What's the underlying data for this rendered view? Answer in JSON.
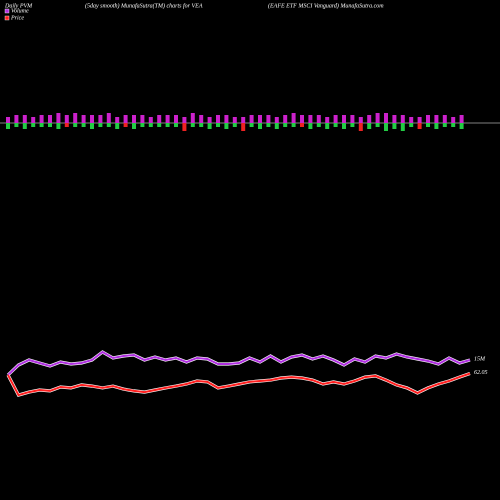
{
  "chart_data": {
    "type": "pvm",
    "title": "Daily PVM",
    "subtitle": "(5day smooth) MunafaSutra(TM) charts for VEA",
    "name": "(EAFE ETF MSCI Vanguard) MunafaSutra.com",
    "bars": {
      "ylim": [
        -10,
        10
      ],
      "up_color": "#cc22cc",
      "up": [
        3,
        4,
        4,
        3,
        4,
        4,
        5,
        4,
        5,
        4,
        4,
        4,
        5,
        3,
        4,
        4,
        4,
        3,
        4,
        4,
        4,
        3,
        5,
        4,
        3,
        4,
        4,
        3,
        3,
        4,
        4,
        4,
        3,
        4,
        5,
        4,
        4,
        4,
        3,
        4,
        4,
        4,
        3,
        4,
        5,
        5,
        4,
        4,
        3,
        3,
        4,
        4,
        4,
        3,
        4
      ],
      "down": [
        -3,
        -2,
        -3,
        -2,
        -2,
        -2,
        -3,
        -2,
        -2,
        -2,
        -3,
        -2,
        -2,
        -3,
        -2,
        -3,
        -2,
        -2,
        -2,
        -2,
        -2,
        -4,
        -2,
        -2,
        -3,
        -2,
        -3,
        -2,
        -4,
        -2,
        -3,
        -2,
        -3,
        -2,
        -2,
        -2,
        -3,
        -2,
        -3,
        -2,
        -3,
        -2,
        -4,
        -3,
        -2,
        -4,
        -3,
        -4,
        -2,
        -3,
        -2,
        -3,
        -2,
        -2,
        -3
      ],
      "down_colors": [
        "#22cc44",
        "#22cc44",
        "#22cc44",
        "#22cc44",
        "#22cc44",
        "#22cc44",
        "#22cc44",
        "#ee2222",
        "#22cc44",
        "#22cc44",
        "#22cc44",
        "#22cc44",
        "#22cc44",
        "#22cc44",
        "#ee2222",
        "#22cc44",
        "#22cc44",
        "#22cc44",
        "#22cc44",
        "#22cc44",
        "#22cc44",
        "#ee2222",
        "#22cc44",
        "#22cc44",
        "#22cc44",
        "#22cc44",
        "#22cc44",
        "#22cc44",
        "#ee2222",
        "#22cc44",
        "#22cc44",
        "#22cc44",
        "#22cc44",
        "#22cc44",
        "#22cc44",
        "#ee2222",
        "#22cc44",
        "#22cc44",
        "#22cc44",
        "#22cc44",
        "#22cc44",
        "#22cc44",
        "#ee2222",
        "#22cc44",
        "#22cc44",
        "#22cc44",
        "#22cc44",
        "#22cc44",
        "#22cc44",
        "#ee2222",
        "#22cc44",
        "#22cc44",
        "#22cc44",
        "#22cc44",
        "#22cc44"
      ]
    },
    "series": [
      {
        "name": "Volume",
        "color": "#b030e0",
        "ylim": [
          0,
          30
        ],
        "last_label": "15M",
        "values": [
          11.25,
          13.75,
          15,
          14.25,
          13.5,
          14.5,
          14,
          14.25,
          15,
          17,
          15.5,
          16,
          16.25,
          15,
          15.75,
          15,
          15.5,
          14.5,
          15.5,
          15.25,
          14,
          14,
          14.25,
          15.5,
          14.5,
          16,
          14.5,
          15.75,
          16.25,
          15.25,
          16,
          15,
          13.75,
          15.25,
          14.5,
          16,
          15.5,
          16.5,
          15.75,
          15.25,
          14.75,
          14,
          15.5,
          14.25,
          15
        ]
      },
      {
        "name": "Price",
        "color": "#ff2020",
        "ylim": [
          60.5,
          64.5
        ],
        "last_label": "62.05",
        "values": [
          62.0,
          61.33,
          61.43,
          61.5,
          61.47,
          61.6,
          61.57,
          61.67,
          61.63,
          61.57,
          61.63,
          61.53,
          61.47,
          61.43,
          61.5,
          61.57,
          61.63,
          61.7,
          61.8,
          61.77,
          61.57,
          61.63,
          61.7,
          61.77,
          61.8,
          61.83,
          61.9,
          61.93,
          61.9,
          61.83,
          61.7,
          61.77,
          61.7,
          61.8,
          61.93,
          61.97,
          61.83,
          61.67,
          61.57,
          61.4,
          61.57,
          61.7,
          61.8,
          61.93,
          62.05
        ]
      }
    ]
  }
}
